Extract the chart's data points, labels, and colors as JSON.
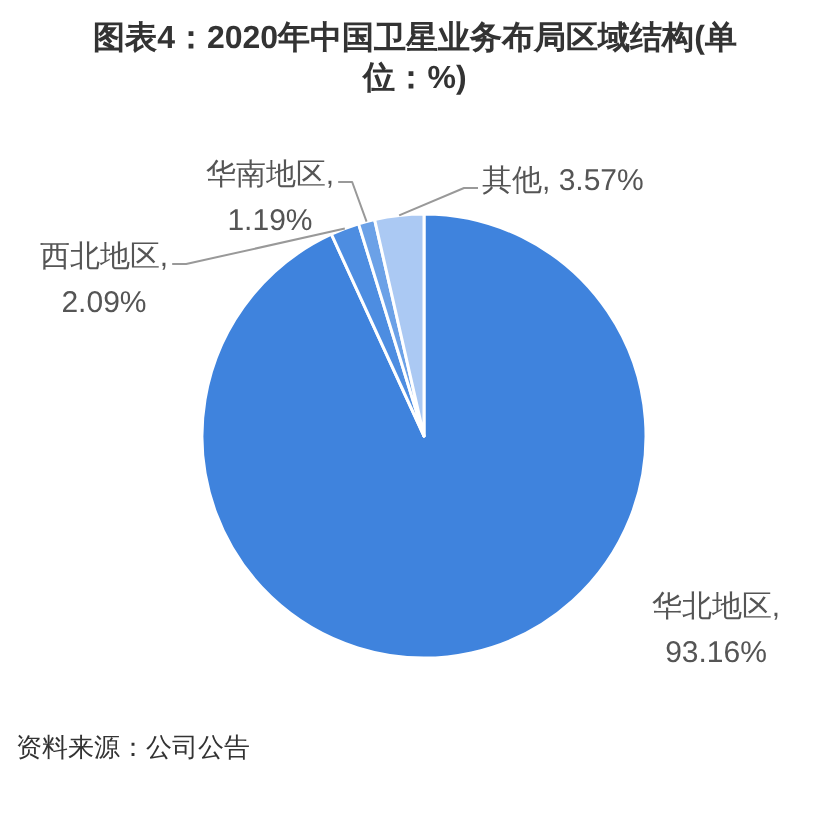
{
  "chart_data": {
    "type": "pie",
    "title": "图表4：2020年中国卫星业务布局区域结构(单位：%)",
    "categories": [
      "华北地区",
      "西北地区",
      "华南地区",
      "其他"
    ],
    "values": [
      93.16,
      2.09,
      1.19,
      3.57
    ],
    "colors": [
      "#3f83dd",
      "#4d8de1",
      "#6ba1e7",
      "#abc9f3"
    ],
    "value_labels": [
      ", 93.16%",
      ", 2.09%",
      ", 1.19%",
      ", 3.57%"
    ],
    "annotations": [
      "资料来源：公司公告"
    ]
  }
}
